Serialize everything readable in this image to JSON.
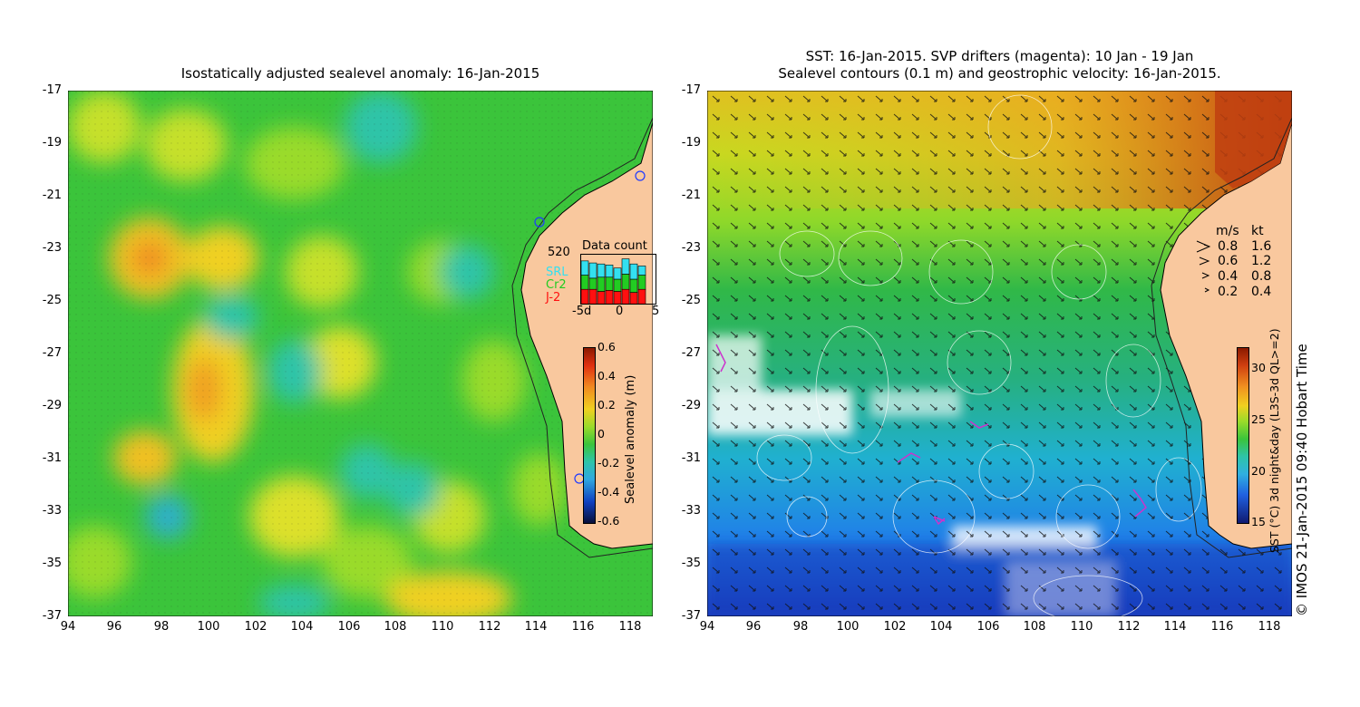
{
  "left_panel": {
    "title": "Isostatically adjusted sealevel anomaly: 16-Jan-2015",
    "y_ticks": [
      "-17",
      "-19",
      "-21",
      "-23",
      "-25",
      "-27",
      "-29",
      "-31",
      "-33",
      "-35",
      "-37"
    ],
    "x_ticks": [
      "94",
      "96",
      "98",
      "100",
      "102",
      "104",
      "106",
      "108",
      "110",
      "112",
      "114",
      "116",
      "118"
    ],
    "data_count": {
      "title": "Data count",
      "max_label": "520",
      "series": [
        {
          "name": "SRL",
          "color": "#33e0f0"
        },
        {
          "name": "Cr2",
          "color": "#22cc22"
        },
        {
          "name": "J-2",
          "color": "#ff1010"
        }
      ],
      "x_ticks": [
        "-5d",
        "0",
        "5"
      ],
      "bars": [
        {
          "j2": 0.3,
          "cr2": 0.28,
          "srl": 0.28
        },
        {
          "j2": 0.3,
          "cr2": 0.22,
          "srl": 0.3
        },
        {
          "j2": 0.26,
          "cr2": 0.28,
          "srl": 0.26
        },
        {
          "j2": 0.28,
          "cr2": 0.26,
          "srl": 0.24
        },
        {
          "j2": 0.26,
          "cr2": 0.24,
          "srl": 0.22
        },
        {
          "j2": 0.3,
          "cr2": 0.3,
          "srl": 0.3
        },
        {
          "j2": 0.24,
          "cr2": 0.26,
          "srl": 0.3
        },
        {
          "j2": 0.3,
          "cr2": 0.28,
          "srl": 0.18
        },
        {
          "j2": 0.0,
          "cr2": 0.0,
          "srl": 0.0
        }
      ]
    },
    "colorbar": {
      "label": "Sealevel anomaly (m)",
      "ticks": [
        "0.6",
        "0.4",
        "0.2",
        "0",
        "-0.2",
        "-0.4",
        "-0.6"
      ]
    }
  },
  "right_panel": {
    "title_line1": "SST: 16-Jan-2015. SVP drifters (magenta): 10 Jan - 19 Jan",
    "title_line2": "Sealevel contours (0.1 m) and geostrophic velocity: 16-Jan-2015.",
    "y_ticks": [
      "-17",
      "-19",
      "-21",
      "-23",
      "-25",
      "-27",
      "-29",
      "-31",
      "-33",
      "-35",
      "-37"
    ],
    "x_ticks": [
      "94",
      "96",
      "98",
      "100",
      "102",
      "104",
      "106",
      "108",
      "110",
      "112",
      "114",
      "116",
      "118"
    ],
    "velocity_legend": {
      "headers": [
        "m/s",
        "kt"
      ],
      "rows": [
        [
          "0.8",
          "1.6"
        ],
        [
          "0.6",
          "1.2"
        ],
        [
          "0.4",
          "0.8"
        ],
        [
          "0.2",
          "0.4"
        ]
      ]
    },
    "colorbar": {
      "label": "SST (°C) 3d night&day (L3S-3d QL>=2)",
      "ticks": [
        "30",
        "25",
        "20",
        "15"
      ]
    }
  },
  "credit": "© IMOS 21-Jan-2015 09:40 Hobart Time",
  "colors": {
    "land": "#f9c89e",
    "accent_magenta": "#cc33cc"
  }
}
